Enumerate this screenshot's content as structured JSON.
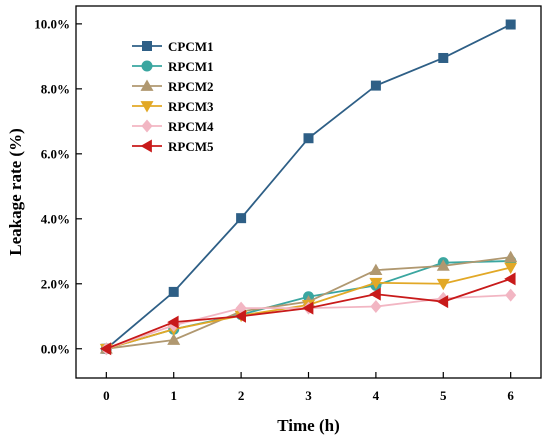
{
  "chart_data": {
    "type": "line",
    "xlabel": "Time (h)",
    "ylabel": "Leakage rate (%)",
    "x": [
      0,
      1,
      2,
      3,
      4,
      5,
      6
    ],
    "x_ticks": [
      "0",
      "1",
      "2",
      "3",
      "4",
      "5",
      "6"
    ],
    "xlim": [
      -0.45,
      6.45
    ],
    "ylim": [
      -0.9,
      10.55
    ],
    "y_ticks": [
      0,
      2,
      4,
      6,
      8,
      10
    ],
    "y_tick_labels": [
      "0.0%",
      "2.0%",
      "4.0%",
      "6.0%",
      "8.0%",
      "10.0%"
    ],
    "grid": false,
    "legend_position": "top-left",
    "series": [
      {
        "name": "CPCM1",
        "marker": "square",
        "color": "#2e5f86",
        "values": [
          0,
          1.75,
          4.02,
          6.48,
          8.1,
          8.95,
          9.98
        ]
      },
      {
        "name": "RPCM1",
        "marker": "circle",
        "color": "#3aa6a0",
        "values": [
          0,
          0.6,
          1.05,
          1.6,
          1.95,
          2.65,
          2.7
        ]
      },
      {
        "name": "RPCM2",
        "marker": "triangle-up",
        "color": "#b09870",
        "values": [
          0,
          0.27,
          1.15,
          1.45,
          2.42,
          2.55,
          2.82
        ]
      },
      {
        "name": "RPCM3",
        "marker": "triangle-down",
        "color": "#e2a826",
        "values": [
          0,
          0.6,
          1.02,
          1.35,
          2.03,
          2.0,
          2.5
        ]
      },
      {
        "name": "RPCM4",
        "marker": "diamond",
        "color": "#f2b6c3",
        "values": [
          0,
          0.72,
          1.25,
          1.25,
          1.3,
          1.55,
          1.65
        ]
      },
      {
        "name": "RPCM5",
        "marker": "triangle-left",
        "color": "#c81a1a",
        "values": [
          0,
          0.82,
          1.0,
          1.25,
          1.68,
          1.45,
          2.15
        ]
      }
    ]
  }
}
